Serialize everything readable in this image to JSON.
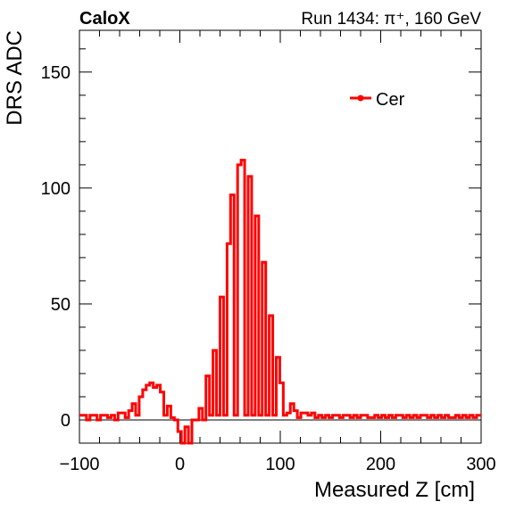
{
  "header": {
    "experiment": "CaloX",
    "run_info": "Run 1434:   π⁺, 160 GeV"
  },
  "colors": {
    "series": "#ff0000",
    "axis": "#000000",
    "zero_line": "#000000"
  },
  "chart_data": {
    "type": "line",
    "title": "",
    "xlabel": "Measured Z [cm]",
    "ylabel": "DRS ADC",
    "xlim": [
      -100,
      300
    ],
    "ylim": [
      -10,
      168
    ],
    "x_ticks": [
      -100,
      0,
      100,
      200,
      300
    ],
    "x_tick_labels": [
      "−100",
      "0",
      "100",
      "200",
      "300"
    ],
    "y_ticks": [
      0,
      50,
      100,
      150
    ],
    "y_tick_labels": [
      "0",
      "50",
      "100",
      "150"
    ],
    "zero_line": true,
    "grid": false,
    "legend": {
      "placement": "top-right",
      "entries": [
        "Cer"
      ]
    },
    "series": [
      {
        "name": "Cer",
        "style": "step",
        "bin_width": 3.5,
        "x_start": -100,
        "values": [
          2,
          2,
          0,
          2,
          2,
          0,
          2,
          2,
          1,
          2,
          0,
          3,
          3,
          1,
          4,
          7,
          2,
          10,
          13,
          15,
          16,
          14,
          15,
          12,
          2,
          6,
          1,
          0,
          -5,
          -10,
          -3,
          -10,
          0,
          0,
          5,
          0,
          19,
          2,
          30,
          2,
          53,
          2,
          76,
          97,
          2,
          110,
          112,
          2,
          105,
          2,
          88,
          2,
          68,
          2,
          45,
          2,
          27,
          16,
          2,
          3,
          7,
          4,
          1,
          3,
          3,
          2,
          3,
          1,
          2,
          1,
          2,
          1,
          2,
          2,
          1,
          2,
          2,
          1,
          2,
          1,
          2,
          2,
          1,
          1,
          2,
          1,
          2,
          1,
          2,
          1,
          2,
          2,
          1,
          2,
          1,
          2,
          1,
          2,
          2,
          1,
          2,
          1,
          2,
          1,
          2,
          1,
          1,
          2,
          1,
          2,
          1,
          2,
          1,
          2,
          2
        ]
      }
    ]
  }
}
